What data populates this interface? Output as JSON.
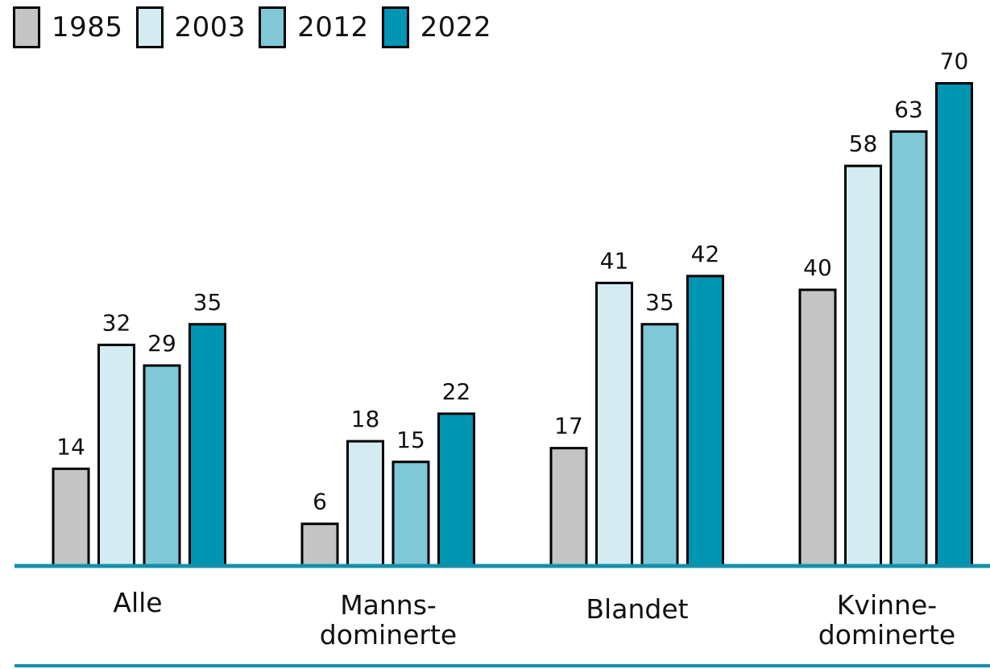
{
  "colors": {
    "1985": "#c4c4c4",
    "2003": "#d3ebf1",
    "2012": "#80c8d8",
    "2022": "#0095b3",
    "axis": "#1590aa"
  },
  "legend": [
    {
      "label": "1985"
    },
    {
      "label": "2003"
    },
    {
      "label": "2012"
    },
    {
      "label": "2022"
    }
  ],
  "chart_data": {
    "type": "bar",
    "title": "",
    "xlabel": "",
    "ylabel": "",
    "legend_position": "top-left",
    "grid": false,
    "ylim": [
      0,
      72
    ],
    "categories": [
      [
        "Alle"
      ],
      [
        "Manns-",
        "dominerte"
      ],
      [
        "Blandet"
      ],
      [
        "Kvinne-",
        "dominerte"
      ]
    ],
    "series": [
      {
        "name": "1985",
        "values": [
          14,
          6,
          17,
          40
        ]
      },
      {
        "name": "2003",
        "values": [
          32,
          18,
          41,
          58
        ]
      },
      {
        "name": "2012",
        "values": [
          29,
          15,
          35,
          63
        ]
      },
      {
        "name": "2022",
        "values": [
          35,
          22,
          42,
          70
        ]
      }
    ]
  }
}
